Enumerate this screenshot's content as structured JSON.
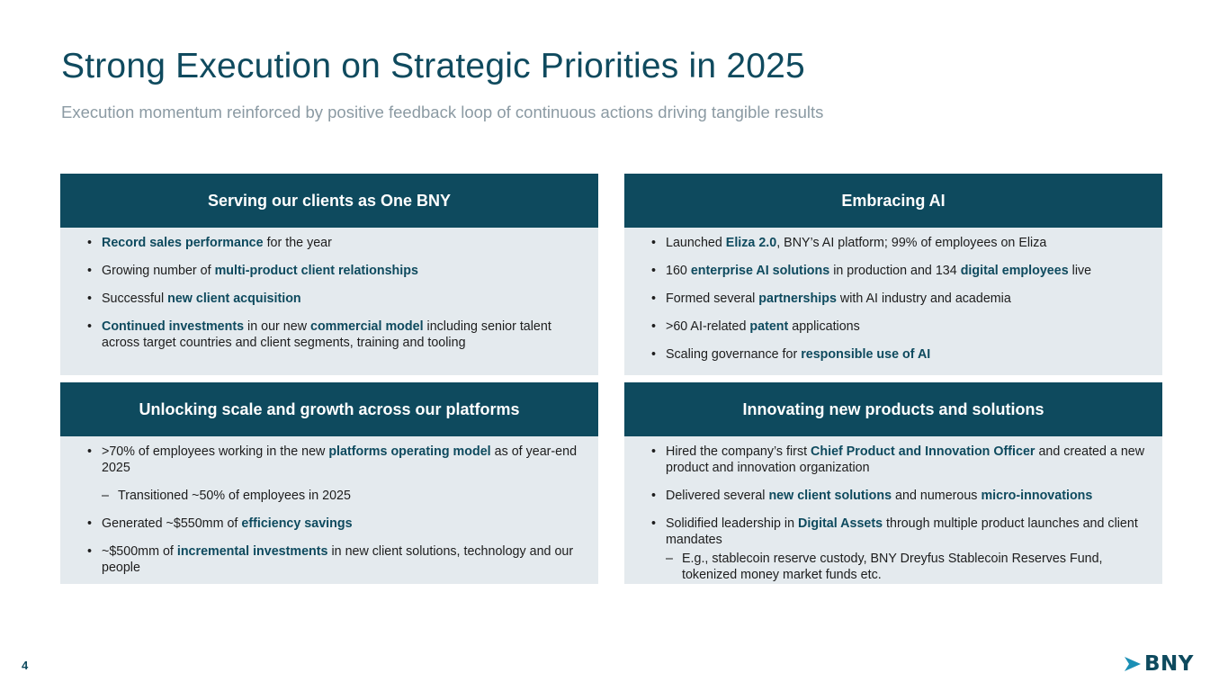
{
  "title": "Strong Execution on Strategic Priorities in 2025",
  "subtitle": "Execution momentum reinforced by positive feedback loop of continuous actions driving tangible results",
  "page_number": "4",
  "logo": {
    "text": "BNY",
    "icon": "chevron-arrow-icon",
    "brand_color": "#0e4a5e",
    "accent_color": "#1b8fb5"
  },
  "colors": {
    "header_bg": "#0e4a5e",
    "panel_bg": "#e4eaee",
    "highlight": "#0e4a5e",
    "subtitle": "#8b9aa3"
  },
  "panels": [
    {
      "header": "Serving our clients as One BNY",
      "items": [
        {
          "type": "bullet",
          "segments": [
            {
              "t": "Record sales performance",
              "b": true
            },
            {
              "t": " for the year"
            }
          ]
        },
        {
          "type": "bullet",
          "segments": [
            {
              "t": "Growing number of "
            },
            {
              "t": "multi-product client relationships",
              "b": true
            }
          ]
        },
        {
          "type": "bullet",
          "segments": [
            {
              "t": "Successful "
            },
            {
              "t": "new client acquisition",
              "b": true
            }
          ]
        },
        {
          "type": "bullet",
          "segments": [
            {
              "t": "Continued investments",
              "b": true
            },
            {
              "t": " in our new "
            },
            {
              "t": "commercial model",
              "b": true
            },
            {
              "t": " including senior talent across target countries and client segments, training and tooling"
            }
          ]
        }
      ]
    },
    {
      "header": "Embracing AI",
      "items": [
        {
          "type": "bullet",
          "segments": [
            {
              "t": "Launched "
            },
            {
              "t": "Eliza 2.0",
              "b": true
            },
            {
              "t": ", BNY’s AI platform; 99% of employees on Eliza"
            }
          ]
        },
        {
          "type": "bullet",
          "segments": [
            {
              "t": "160 "
            },
            {
              "t": "enterprise AI solutions",
              "b": true
            },
            {
              "t": " in production and 134 "
            },
            {
              "t": "digital employees",
              "b": true
            },
            {
              "t": " live"
            }
          ]
        },
        {
          "type": "bullet",
          "segments": [
            {
              "t": "Formed several "
            },
            {
              "t": "partnerships",
              "b": true
            },
            {
              "t": " with AI industry and academia"
            }
          ]
        },
        {
          "type": "bullet",
          "segments": [
            {
              "t": ">60 AI-related "
            },
            {
              "t": "patent",
              "b": true
            },
            {
              "t": " applications"
            }
          ]
        },
        {
          "type": "bullet",
          "segments": [
            {
              "t": "Scaling governance for "
            },
            {
              "t": "responsible use of AI",
              "b": true
            }
          ]
        }
      ]
    },
    {
      "header": "Unlocking scale and growth across our platforms",
      "items": [
        {
          "type": "bullet",
          "segments": [
            {
              "t": ">70% of employees working in the new "
            },
            {
              "t": "platforms operating model",
              "b": true
            },
            {
              "t": " as of year-end 2025"
            }
          ]
        },
        {
          "type": "sub",
          "segments": [
            {
              "t": "Transitioned ~50% of employees in 2025"
            }
          ]
        },
        {
          "type": "bullet",
          "segments": [
            {
              "t": "Generated ~$550mm of "
            },
            {
              "t": "efficiency savings",
              "b": true
            }
          ]
        },
        {
          "type": "bullet",
          "segments": [
            {
              "t": "~$500mm of "
            },
            {
              "t": "incremental investments",
              "b": true
            },
            {
              "t": " in new client solutions, technology and our people"
            }
          ]
        }
      ]
    },
    {
      "header": "Innovating new products and solutions",
      "items": [
        {
          "type": "bullet",
          "segments": [
            {
              "t": "Hired the company’s first "
            },
            {
              "t": "Chief Product and Innovation Officer",
              "b": true
            },
            {
              "t": " and created a new product and innovation organization"
            }
          ]
        },
        {
          "type": "bullet",
          "segments": [
            {
              "t": "Delivered several "
            },
            {
              "t": "new client solutions",
              "b": true
            },
            {
              "t": " and numerous "
            },
            {
              "t": "micro-innovations",
              "b": true
            }
          ]
        },
        {
          "type": "bullet",
          "segments": [
            {
              "t": "Solidified leadership in "
            },
            {
              "t": "Digital Assets",
              "b": true
            },
            {
              "t": " through multiple product launches and client mandates"
            }
          ]
        },
        {
          "type": "sub",
          "tight": true,
          "segments": [
            {
              "t": "E.g., stablecoin reserve custody, BNY Dreyfus Stablecoin Reserves Fund, tokenized money market funds etc."
            }
          ]
        }
      ]
    }
  ]
}
